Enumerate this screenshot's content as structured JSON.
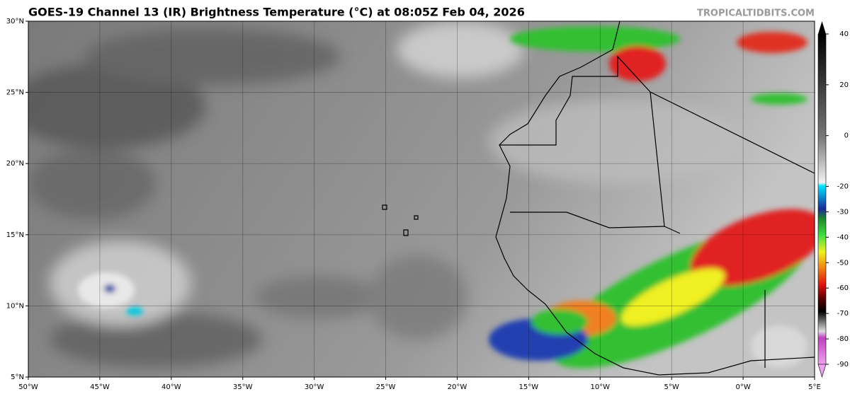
{
  "title": "GOES-19 Channel 13 (IR) Brightness Temperature (°C) at 08:05Z Feb 04, 2026",
  "credit": "TROPICALTIDBITS.COM",
  "map": {
    "lon_range": [
      -50,
      5
    ],
    "lat_range": [
      5,
      30
    ],
    "lat_ticks": [
      {
        "value": 30,
        "label": "30°N"
      },
      {
        "value": 25,
        "label": "25°N"
      },
      {
        "value": 20,
        "label": "20°N"
      },
      {
        "value": 15,
        "label": "15°N"
      },
      {
        "value": 10,
        "label": "10°N"
      },
      {
        "value": 5,
        "label": "5°N"
      }
    ],
    "lon_ticks": [
      {
        "value": -50,
        "label": "50°W"
      },
      {
        "value": -45,
        "label": "45°W"
      },
      {
        "value": -40,
        "label": "40°W"
      },
      {
        "value": -35,
        "label": "35°W"
      },
      {
        "value": -30,
        "label": "30°W"
      },
      {
        "value": -25,
        "label": "25°W"
      },
      {
        "value": -20,
        "label": "20°W"
      },
      {
        "value": -15,
        "label": "15°W"
      },
      {
        "value": -10,
        "label": "10°W"
      },
      {
        "value": -5,
        "label": "5°W"
      },
      {
        "value": 0,
        "label": "0°W"
      },
      {
        "value": 5,
        "label": "5°E"
      }
    ]
  },
  "colorbar": {
    "lim": [
      -90,
      40
    ],
    "ticks": [
      40,
      20,
      0,
      -20,
      -30,
      -40,
      -50,
      -60,
      -70,
      -80,
      -90
    ]
  }
}
